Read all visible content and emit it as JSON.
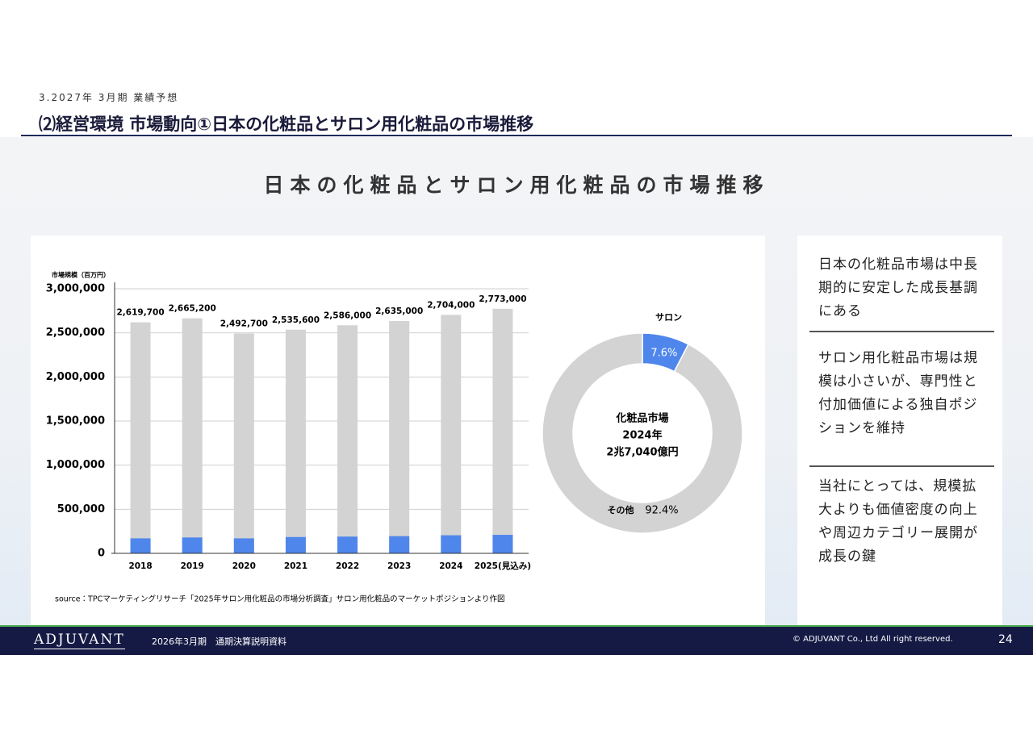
{
  "header": {
    "section": "3.2027年 3月期 業績予想",
    "title": "⑵経営環境 市場動向①日本の化粧品とサロン用化粧品の市場推移"
  },
  "slide_title": "日本の化粧品とサロン用化粧品の市場推移",
  "chart_data": [
    {
      "type": "bar",
      "barmode": "overlay",
      "y_label": "市場規模（百万円）",
      "categories": [
        "2018",
        "2019",
        "2020",
        "2021",
        "2022",
        "2023",
        "2024",
        "2025(見込み)"
      ],
      "series": [
        {
          "color": "#d3d3d3",
          "values": [
            2619700,
            2665200,
            2492700,
            2535600,
            2586000,
            2635000,
            2704000,
            2773000
          ],
          "value_labels": [
            "2,619,700",
            "2,665,200",
            "2,492,700",
            "2,535,600",
            "2,586,000",
            "2,635,000",
            "2,704,000",
            "2,773,000"
          ]
        },
        {
          "color": "#4f86ec",
          "values": [
            170000,
            180000,
            170000,
            185000,
            190000,
            195000,
            205000,
            210000
          ]
        }
      ],
      "ylim": [
        0,
        3000000
      ],
      "yticks": [
        0,
        {
          "value": 500000,
          "label": "500,000"
        },
        {
          "value": 1000000,
          "label": "1,000,000"
        },
        {
          "value": 1500000,
          "label": "1,500,000"
        },
        {
          "value": 2000000,
          "label": "2,000,000"
        },
        {
          "value": 2500000,
          "label": "2,500,000"
        },
        {
          "value": 3000000,
          "label": "3,000,000"
        }
      ],
      "grid": true,
      "source": "source：TPCマーケティングリサーチ「2025年サロン用化粧品の市場分析調査」サロン用化粧品のマーケットポジションより作図"
    },
    {
      "type": "pie",
      "donut": true,
      "categories": [
        "サロン",
        "その他"
      ],
      "values": [
        7.6,
        92.4
      ],
      "value_labels": [
        "7.6%",
        "92.4%"
      ],
      "colors": [
        "#4f86ec",
        "#d3d3d3"
      ],
      "center_text": [
        "化粧品市場",
        "2024年",
        "2兆7,040億円"
      ]
    }
  ],
  "notes": [
    "日本の化粧品市場は中長期的に安定した成長基調にある",
    "サロン用化粧品市場は規模は小さいが、専門性と付加価値による独自ポジションを維持",
    "当社にとっては、規模拡大よりも価値密度の向上や周辺カテゴリー展開が成長の鍵"
  ],
  "footer": {
    "logo": "ADJUVANT",
    "document": "2026年3月期　通期決算説明資料",
    "copyright": "© ADJUVANT Co., Ltd All right reserved.",
    "page": "24"
  }
}
